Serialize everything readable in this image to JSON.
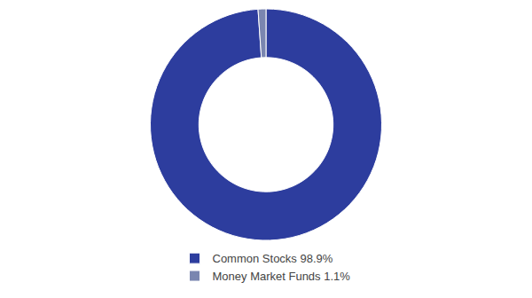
{
  "chart_data": {
    "type": "donut",
    "categories": [
      "Common Stocks 98.9%",
      "Money Market Funds 1.1%"
    ],
    "values": [
      98.9,
      1.1
    ],
    "colors": [
      "#2d3d9e",
      "#7a86b0"
    ],
    "legend": "bottom"
  }
}
